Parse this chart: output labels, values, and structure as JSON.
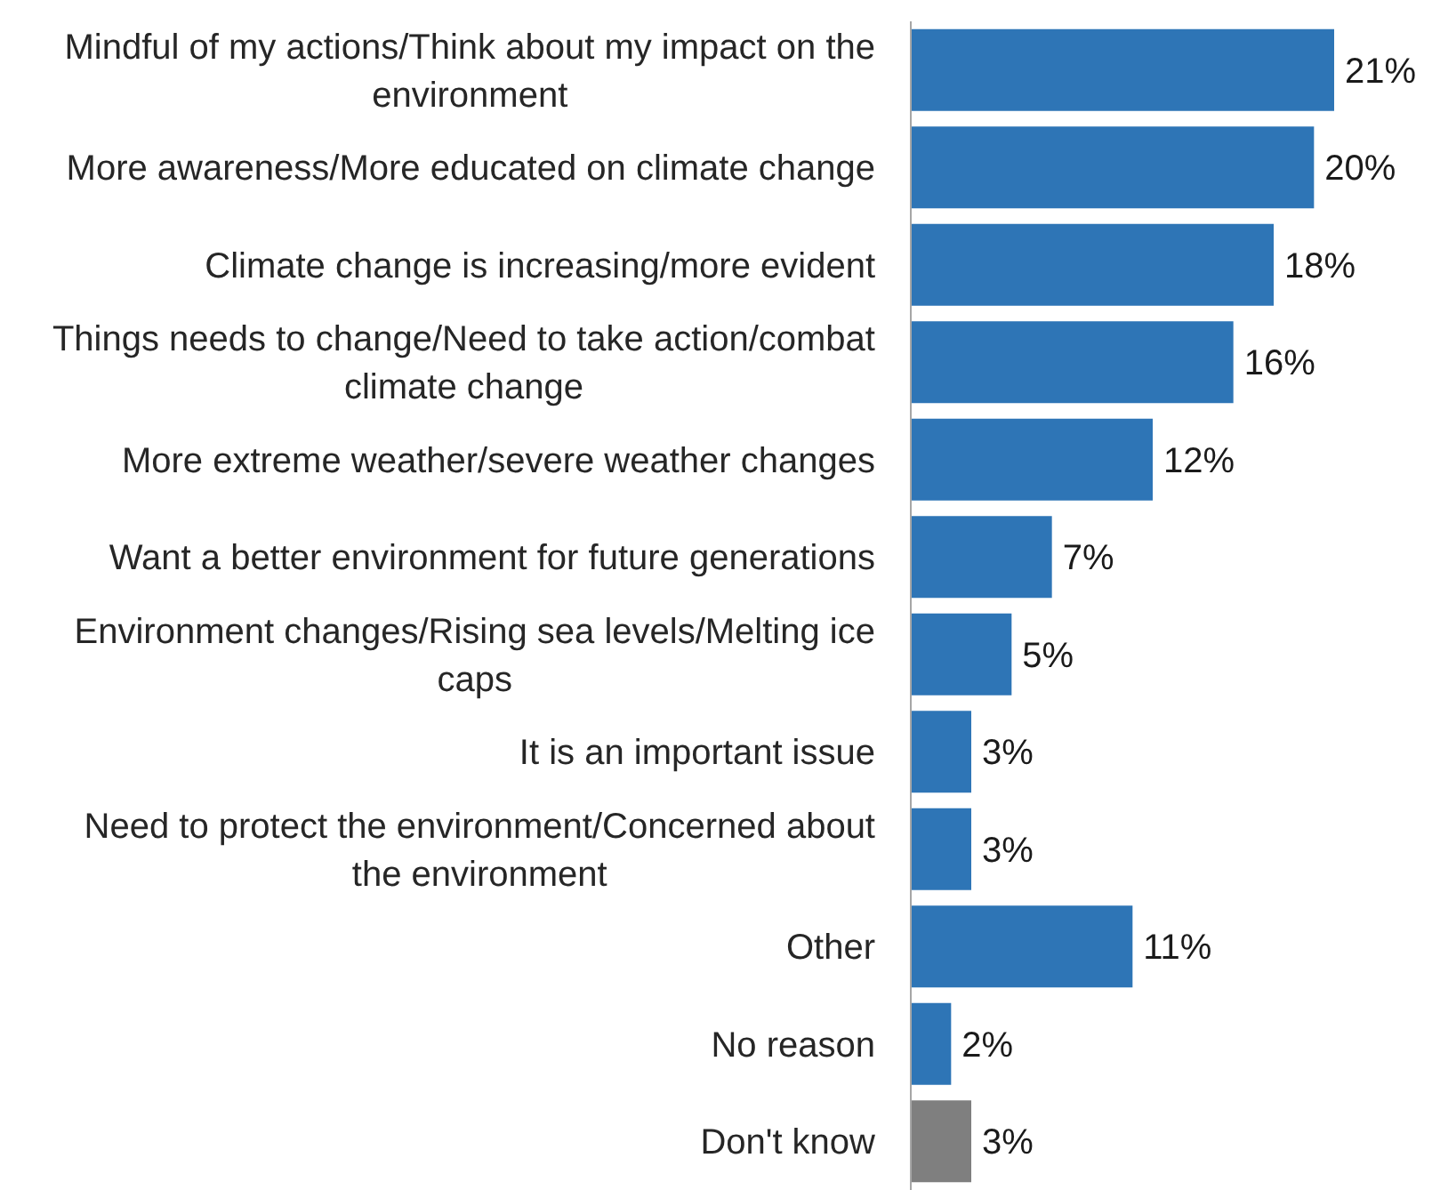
{
  "chart_data": {
    "type": "bar",
    "orientation": "horizontal",
    "categories": [
      "Mindful of my actions/Think about my impact on the environment",
      "More awareness/More educated on climate change",
      "Climate change is increasing/more evident",
      "Things needs to change/Need to take action/combat climate change",
      "More extreme weather/severe weather changes",
      "Want a better environment for future generations",
      "Environment changes/Rising sea levels/Melting ice caps",
      "It is an important issue",
      "Need to protect the environment/Concerned about the environment",
      "Other",
      "No reason",
      "Don't know"
    ],
    "values": [
      21,
      20,
      18,
      16,
      12,
      7,
      5,
      3,
      3,
      11,
      2,
      3
    ],
    "colors": [
      "#2e75b6",
      "#2e75b6",
      "#2e75b6",
      "#2e75b6",
      "#2e75b6",
      "#2e75b6",
      "#2e75b6",
      "#2e75b6",
      "#2e75b6",
      "#2e75b6",
      "#2e75b6",
      "#7f7f7f"
    ],
    "value_labels": [
      "21%",
      "20%",
      "18%",
      "16%",
      "12%",
      "7%",
      "5%",
      "3%",
      "3%",
      "11%",
      "2%",
      "3%"
    ]
  }
}
